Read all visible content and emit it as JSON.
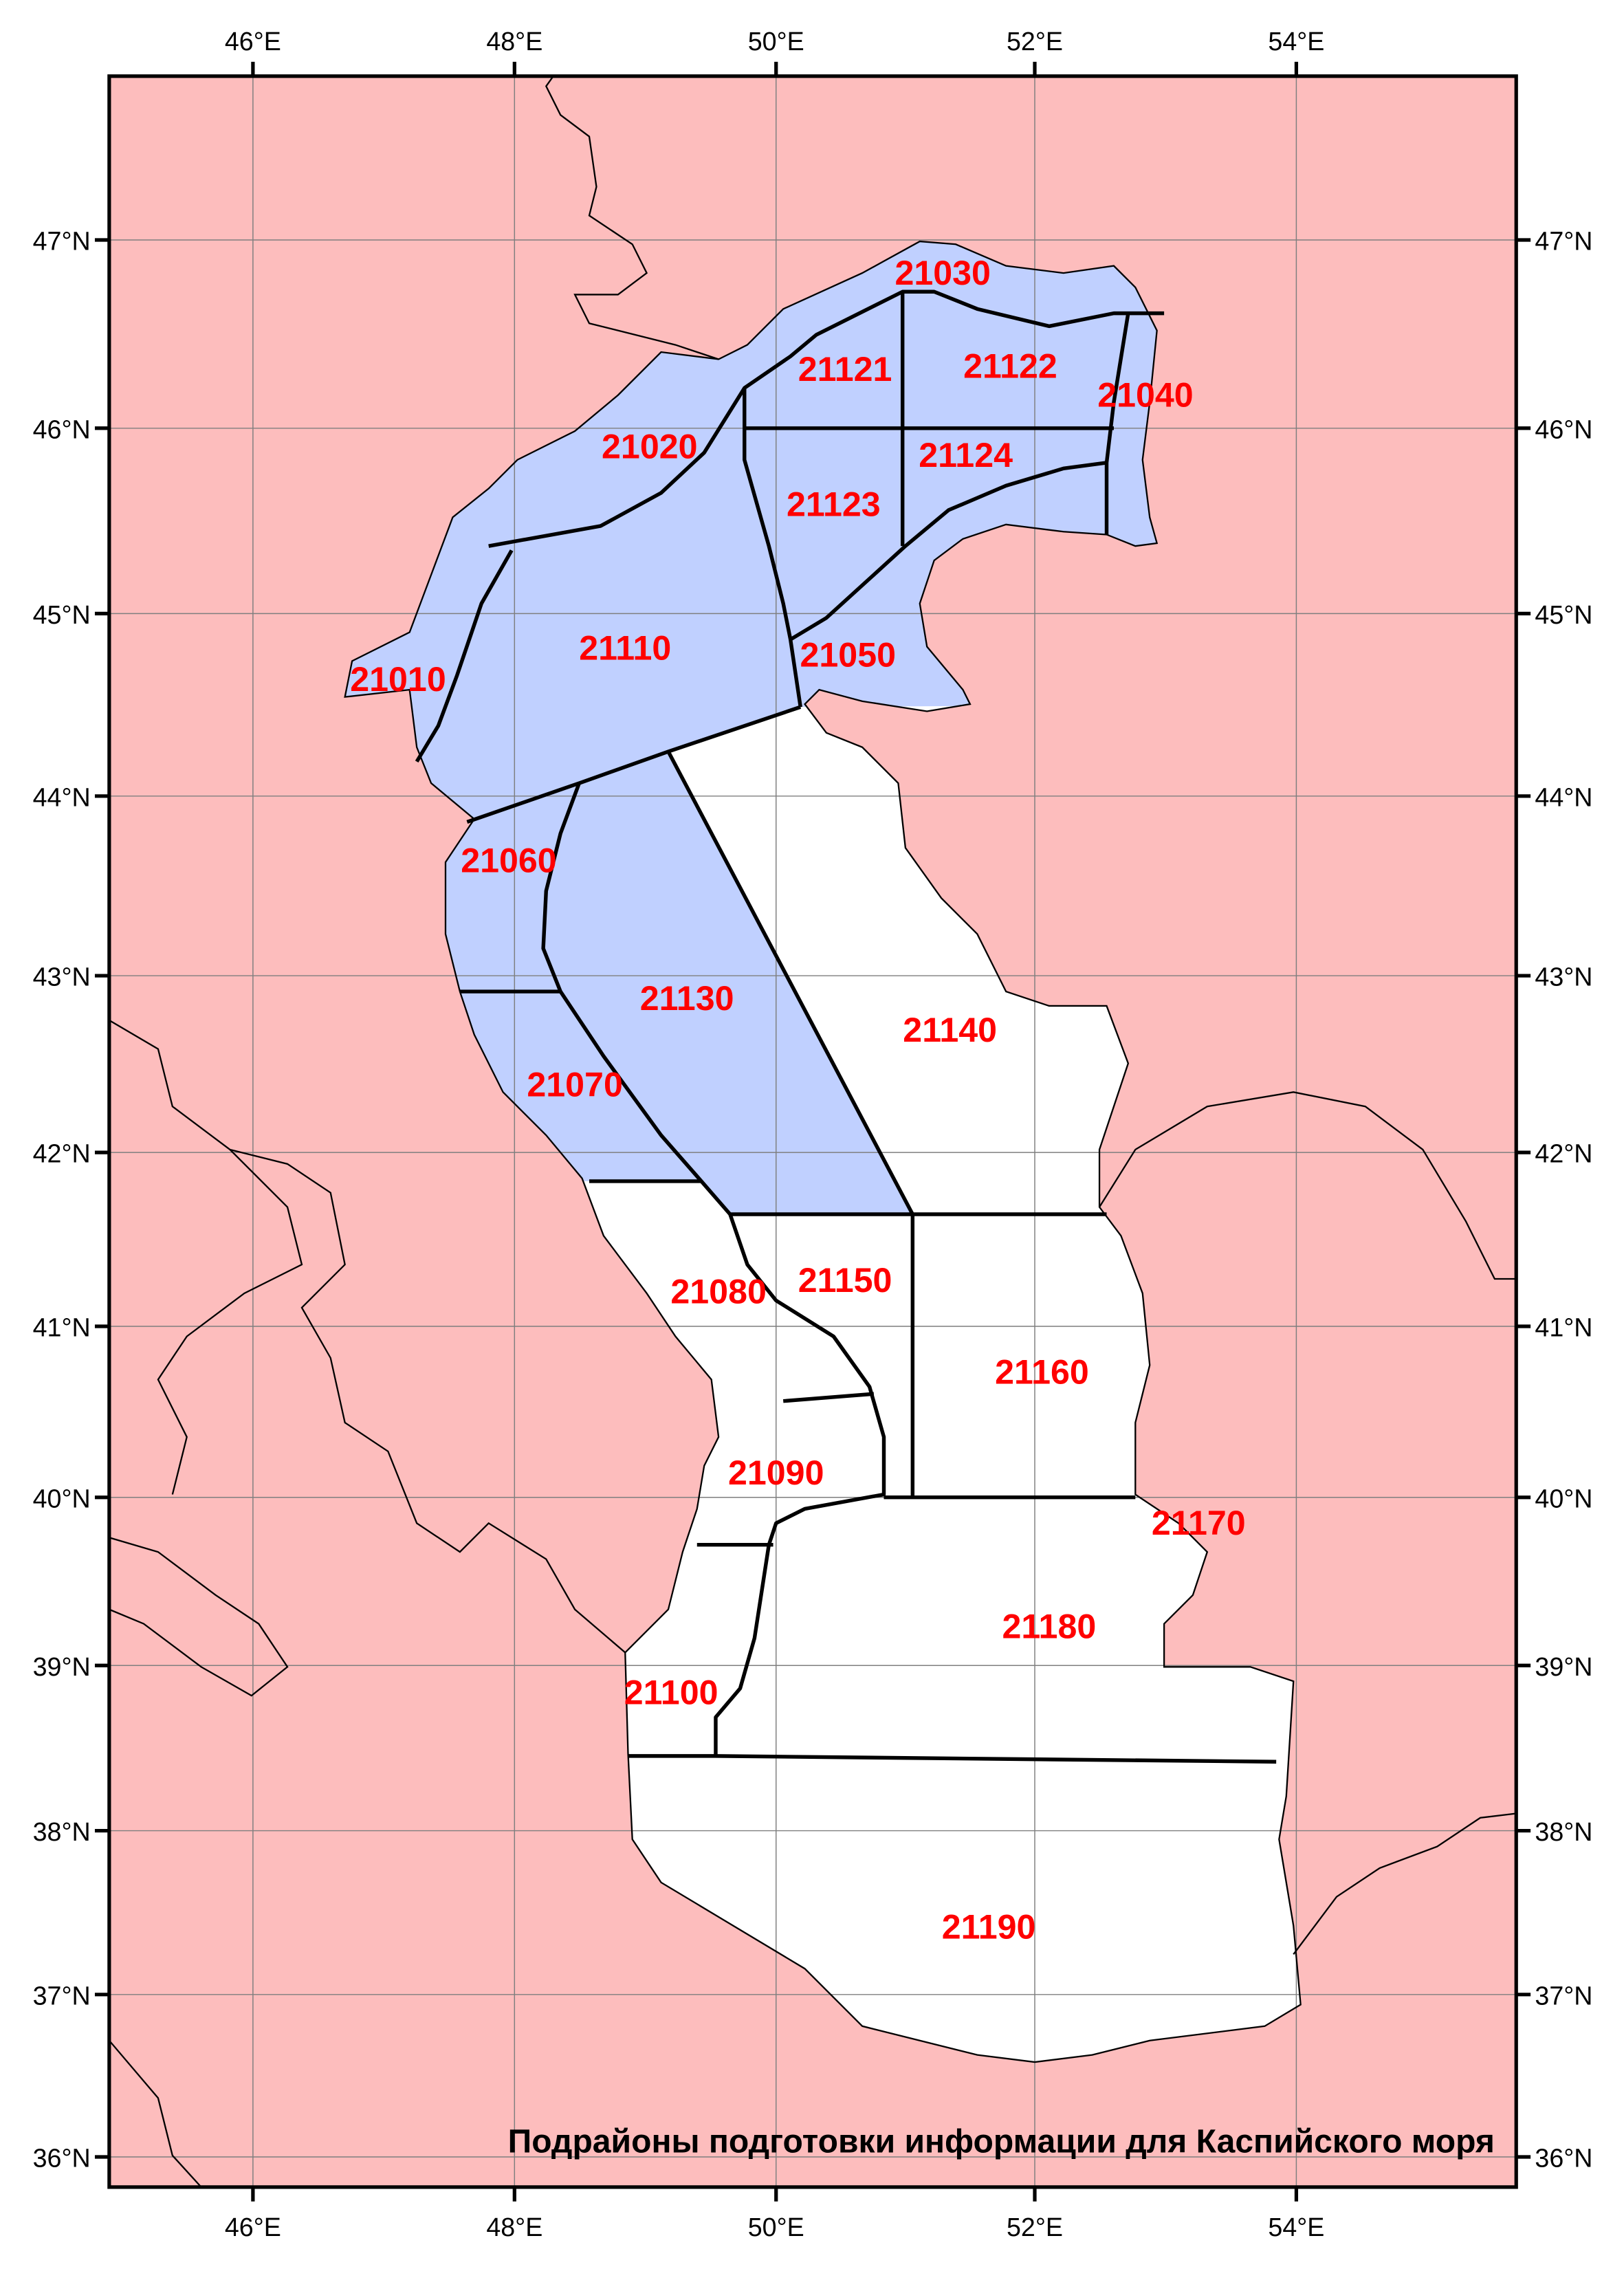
{
  "title": "Подрайоны подготовки информации для Каспийского моря",
  "colors": {
    "land": "#fdbdbd",
    "sea": "#ffffff",
    "highlight_subregions": "#c0d0ff",
    "labels": "#ff0000",
    "boundaries": "#000000",
    "grid": "#7f7f7f"
  },
  "lon_ticks": [
    "46°E",
    "48°E",
    "50°E",
    "52°E",
    "54°E"
  ],
  "lat_ticks": [
    "47°N",
    "46°N",
    "45°N",
    "44°N",
    "43°N",
    "42°N",
    "41°N",
    "40°N",
    "39°N",
    "38°N",
    "37°N",
    "36°N"
  ],
  "subregions": [
    "21030",
    "21121",
    "21122",
    "21040",
    "21020",
    "21124",
    "21123",
    "21110",
    "21010",
    "21050",
    "21060",
    "21130",
    "21140",
    "21070",
    "21080",
    "21150",
    "21160",
    "21090",
    "21170",
    "21180",
    "21100",
    "21190"
  ]
}
